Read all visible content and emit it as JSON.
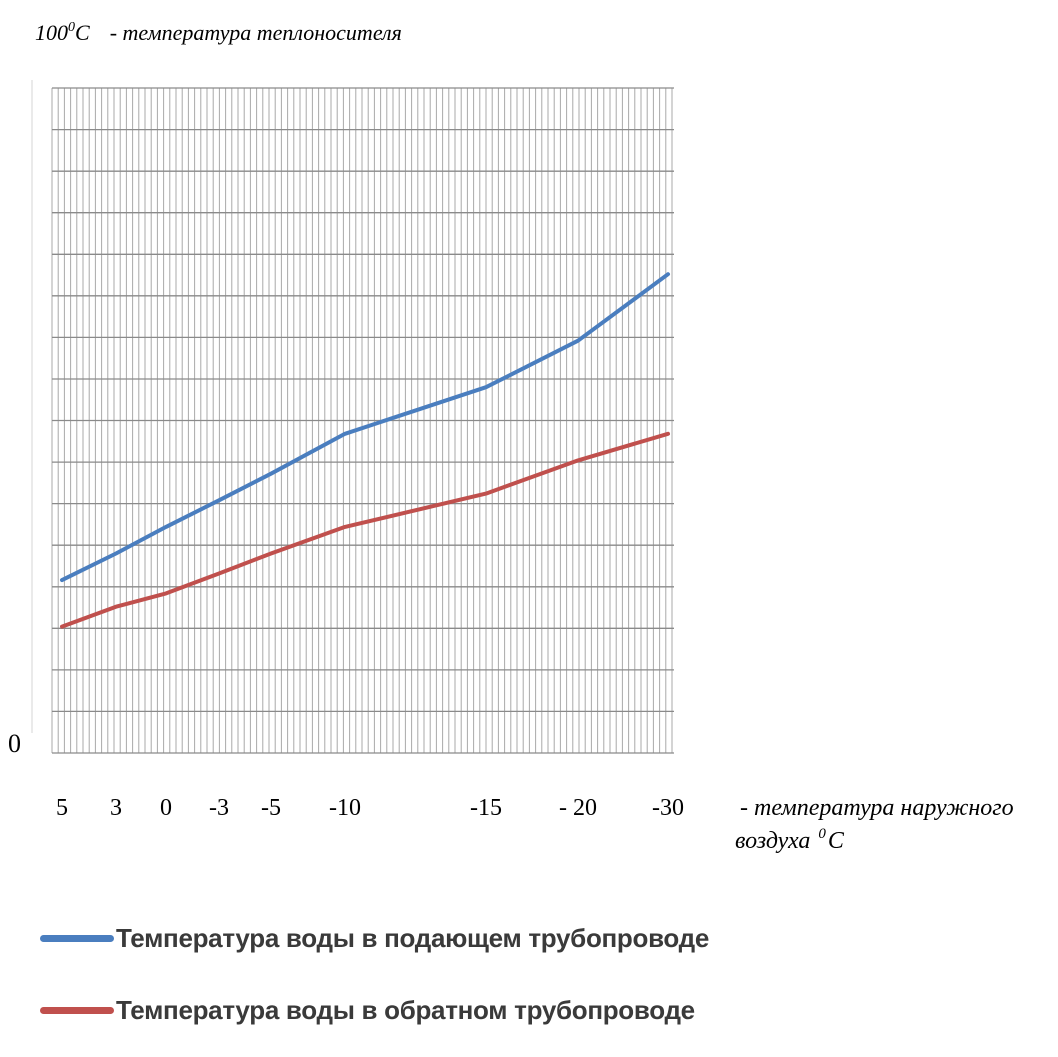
{
  "chart_data": {
    "type": "line",
    "y_axis_label": "100",
    "y_axis_label_sup": "0",
    "y_axis_label_unit": "C",
    "y_axis_desc": "- температура теплоносителя",
    "y_axis_origin_label": "0",
    "x_tick_labels": [
      "5",
      "3",
      "0",
      "-3",
      "-5",
      "-10",
      "-15",
      "- 20",
      "-30"
    ],
    "x_axis_desc_line1": "- температура наружного",
    "x_axis_desc_line2": "воздуха",
    "x_axis_desc_sup": "0",
    "x_axis_desc_unit": "C",
    "ylim": [
      0,
      100
    ],
    "grid": true,
    "series": [
      {
        "name": "Температура воды в подающем трубопроводе",
        "color": "#4a7ebf",
        "values": [
          26,
          30,
          34,
          38,
          42,
          48,
          55,
          62,
          72
        ]
      },
      {
        "name": "Температура воды в обратном трубопроводе",
        "color": "#c0504d",
        "values": [
          19,
          22,
          24,
          27,
          30,
          34,
          39,
          44,
          48
        ]
      }
    ],
    "legend_position": "bottom-left"
  }
}
